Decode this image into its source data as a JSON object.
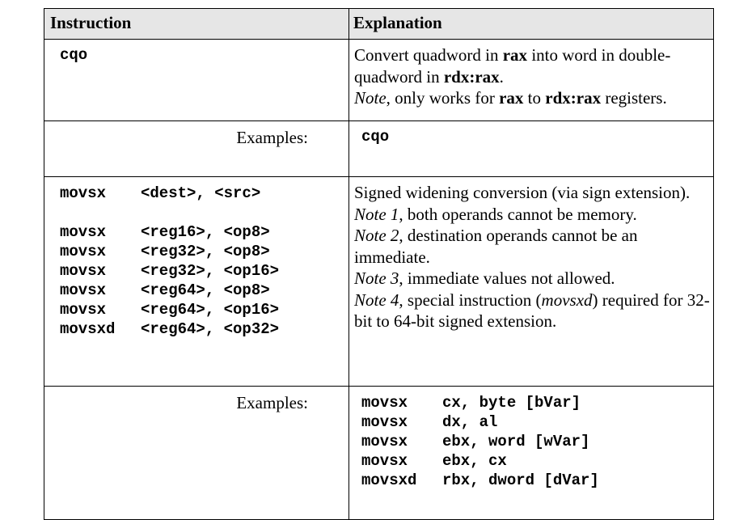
{
  "header": {
    "instruction": "Instruction",
    "explanation": "Explanation"
  },
  "row1": {
    "instruction": "cqo",
    "expl": {
      "p1": "Convert quadword in ",
      "b1": "rax",
      "p2": " into word in double-quadword in ",
      "b2": "rdx:rax",
      "p3": ".",
      "note": "Note",
      "p4": ", only works for ",
      "b3": "rax",
      "p5": " to ",
      "b4": "rdx:rax",
      "p6": " registers."
    }
  },
  "row2": {
    "label": "Examples:",
    "code": "cqo"
  },
  "row3": {
    "syntax": {
      "mnemonic": "movsx",
      "operands": "<dest>, <src>"
    },
    "forms": [
      {
        "mnemonic": "movsx",
        "operands": "<reg16>, <op8>"
      },
      {
        "mnemonic": "movsx",
        "operands": "<reg32>, <op8>"
      },
      {
        "mnemonic": "movsx",
        "operands": "<reg32>, <op16>"
      },
      {
        "mnemonic": "movsx",
        "operands": "<reg64>, <op8>"
      },
      {
        "mnemonic": "movsx",
        "operands": "<reg64>, <op16>"
      },
      {
        "mnemonic": "movsxd",
        "operands": "<reg64>, <op32>"
      }
    ],
    "expl": {
      "line1": "Signed widening conversion (via sign extension).",
      "n1": "Note 1",
      "t1": ", both operands cannot be memory.",
      "n2": "Note 2",
      "t2": ", destination operands cannot be an immediate.",
      "n3": "Note 3",
      "t3": ", immediate values not allowed.",
      "n4": "Note 4",
      "t4a": ", special instruction (",
      "t4i": "movsxd",
      "t4b": ") required for 32-bit to 64-bit signed extension."
    }
  },
  "row4": {
    "label": "Examples:",
    "lines": [
      {
        "mnemonic": "movsx",
        "operands": "cx, byte [bVar]"
      },
      {
        "mnemonic": "movsx",
        "operands": "dx, al"
      },
      {
        "mnemonic": "movsx",
        "operands": "ebx, word [wVar]"
      },
      {
        "mnemonic": "movsx",
        "operands": "ebx, cx"
      },
      {
        "mnemonic": "movsxd",
        "operands": "rbx, dword [dVar]"
      }
    ]
  }
}
